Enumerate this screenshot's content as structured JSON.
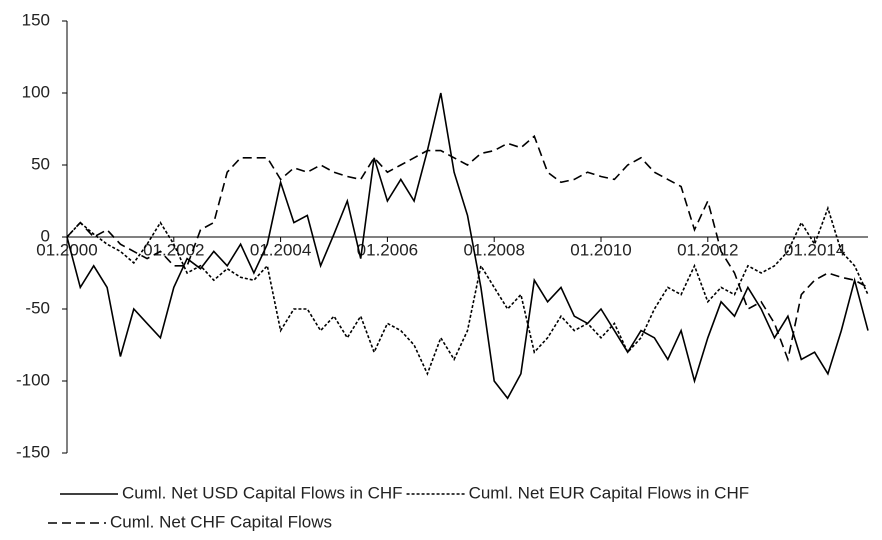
{
  "chart_data": {
    "type": "line",
    "x": [
      2000,
      2000.25,
      2000.5,
      2000.75,
      2001,
      2001.25,
      2001.5,
      2001.75,
      2002,
      2002.25,
      2002.5,
      2002.75,
      2003,
      2003.25,
      2003.5,
      2003.75,
      2004,
      2004.25,
      2004.5,
      2004.75,
      2005,
      2005.25,
      2005.5,
      2005.75,
      2006,
      2006.25,
      2006.5,
      2006.75,
      2007,
      2007.25,
      2007.5,
      2007.75,
      2008,
      2008.25,
      2008.5,
      2008.75,
      2009,
      2009.25,
      2009.5,
      2009.75,
      2010,
      2010.25,
      2010.5,
      2010.75,
      2011,
      2011.25,
      2011.5,
      2011.75,
      2012,
      2012.25,
      2012.5,
      2012.75,
      2013,
      2013.25,
      2013.5,
      2013.75,
      2014,
      2014.25,
      2014.5,
      2014.75,
      2015
    ],
    "series": [
      {
        "name": "Cuml. Net USD Capital Flows in CHF",
        "color": "#000000",
        "dash": "solid",
        "values": [
          0,
          -35,
          -20,
          -35,
          -83,
          -50,
          -60,
          -70,
          -35,
          -15,
          -22,
          -10,
          -20,
          -5,
          -25,
          -5,
          38,
          10,
          15,
          -20,
          2,
          25,
          -15,
          55,
          25,
          40,
          25,
          60,
          100,
          45,
          15,
          -35,
          -100,
          -112,
          -95,
          -30,
          -45,
          -35,
          -55,
          -60,
          -50,
          -65,
          -80,
          -65,
          -70,
          -85,
          -65,
          -100,
          -70,
          -45,
          -55,
          -35,
          -50,
          -70,
          -55,
          -85,
          -80,
          -95,
          -65,
          -30,
          -65
        ]
      },
      {
        "name": "Cuml. Net EUR Capital Flows in CHF",
        "color": "#000000",
        "dash": "dotted",
        "values": [
          0,
          10,
          2,
          -5,
          -10,
          -18,
          -5,
          10,
          -5,
          -25,
          -20,
          -30,
          -22,
          -28,
          -30,
          -20,
          -65,
          -50,
          -50,
          -65,
          -55,
          -70,
          -55,
          -80,
          -60,
          -65,
          -75,
          -95,
          -70,
          -85,
          -65,
          -20,
          -35,
          -50,
          -40,
          -80,
          -70,
          -55,
          -65,
          -60,
          -70,
          -60,
          -80,
          -70,
          -50,
          -35,
          -40,
          -20,
          -45,
          -35,
          -40,
          -20,
          -25,
          -20,
          -10,
          10,
          -5,
          20,
          -10,
          -20,
          -40
        ]
      },
      {
        "name": "Cuml. Net CHF Capital Flows",
        "color": "#000000",
        "dash": "dashed",
        "values": [
          0,
          10,
          0,
          5,
          -5,
          -10,
          -15,
          -10,
          -20,
          -20,
          5,
          10,
          45,
          55,
          55,
          55,
          40,
          48,
          45,
          50,
          45,
          42,
          40,
          55,
          45,
          50,
          55,
          60,
          60,
          55,
          50,
          58,
          60,
          65,
          62,
          70,
          45,
          38,
          40,
          45,
          42,
          40,
          50,
          55,
          45,
          40,
          35,
          5,
          25,
          -10,
          -25,
          -50,
          -45,
          -60,
          -85,
          -40,
          -30,
          -25,
          -28,
          -30,
          -35
        ]
      }
    ],
    "xlim": [
      2000,
      2015
    ],
    "xticks": [
      {
        "value": 2000,
        "label": "01.2000"
      },
      {
        "value": 2002,
        "label": "01.2002"
      },
      {
        "value": 2004,
        "label": "01.2004"
      },
      {
        "value": 2006,
        "label": "01.2006"
      },
      {
        "value": 2008,
        "label": "01.2008"
      },
      {
        "value": 2010,
        "label": "01.2010"
      },
      {
        "value": 2012,
        "label": "01.2012"
      },
      {
        "value": 2014,
        "label": "01.2014"
      }
    ],
    "ylim": [
      -150,
      150
    ],
    "yticks": [
      -150,
      -100,
      -50,
      0,
      50,
      100,
      150
    ],
    "grid": false,
    "legend": "bottom"
  }
}
